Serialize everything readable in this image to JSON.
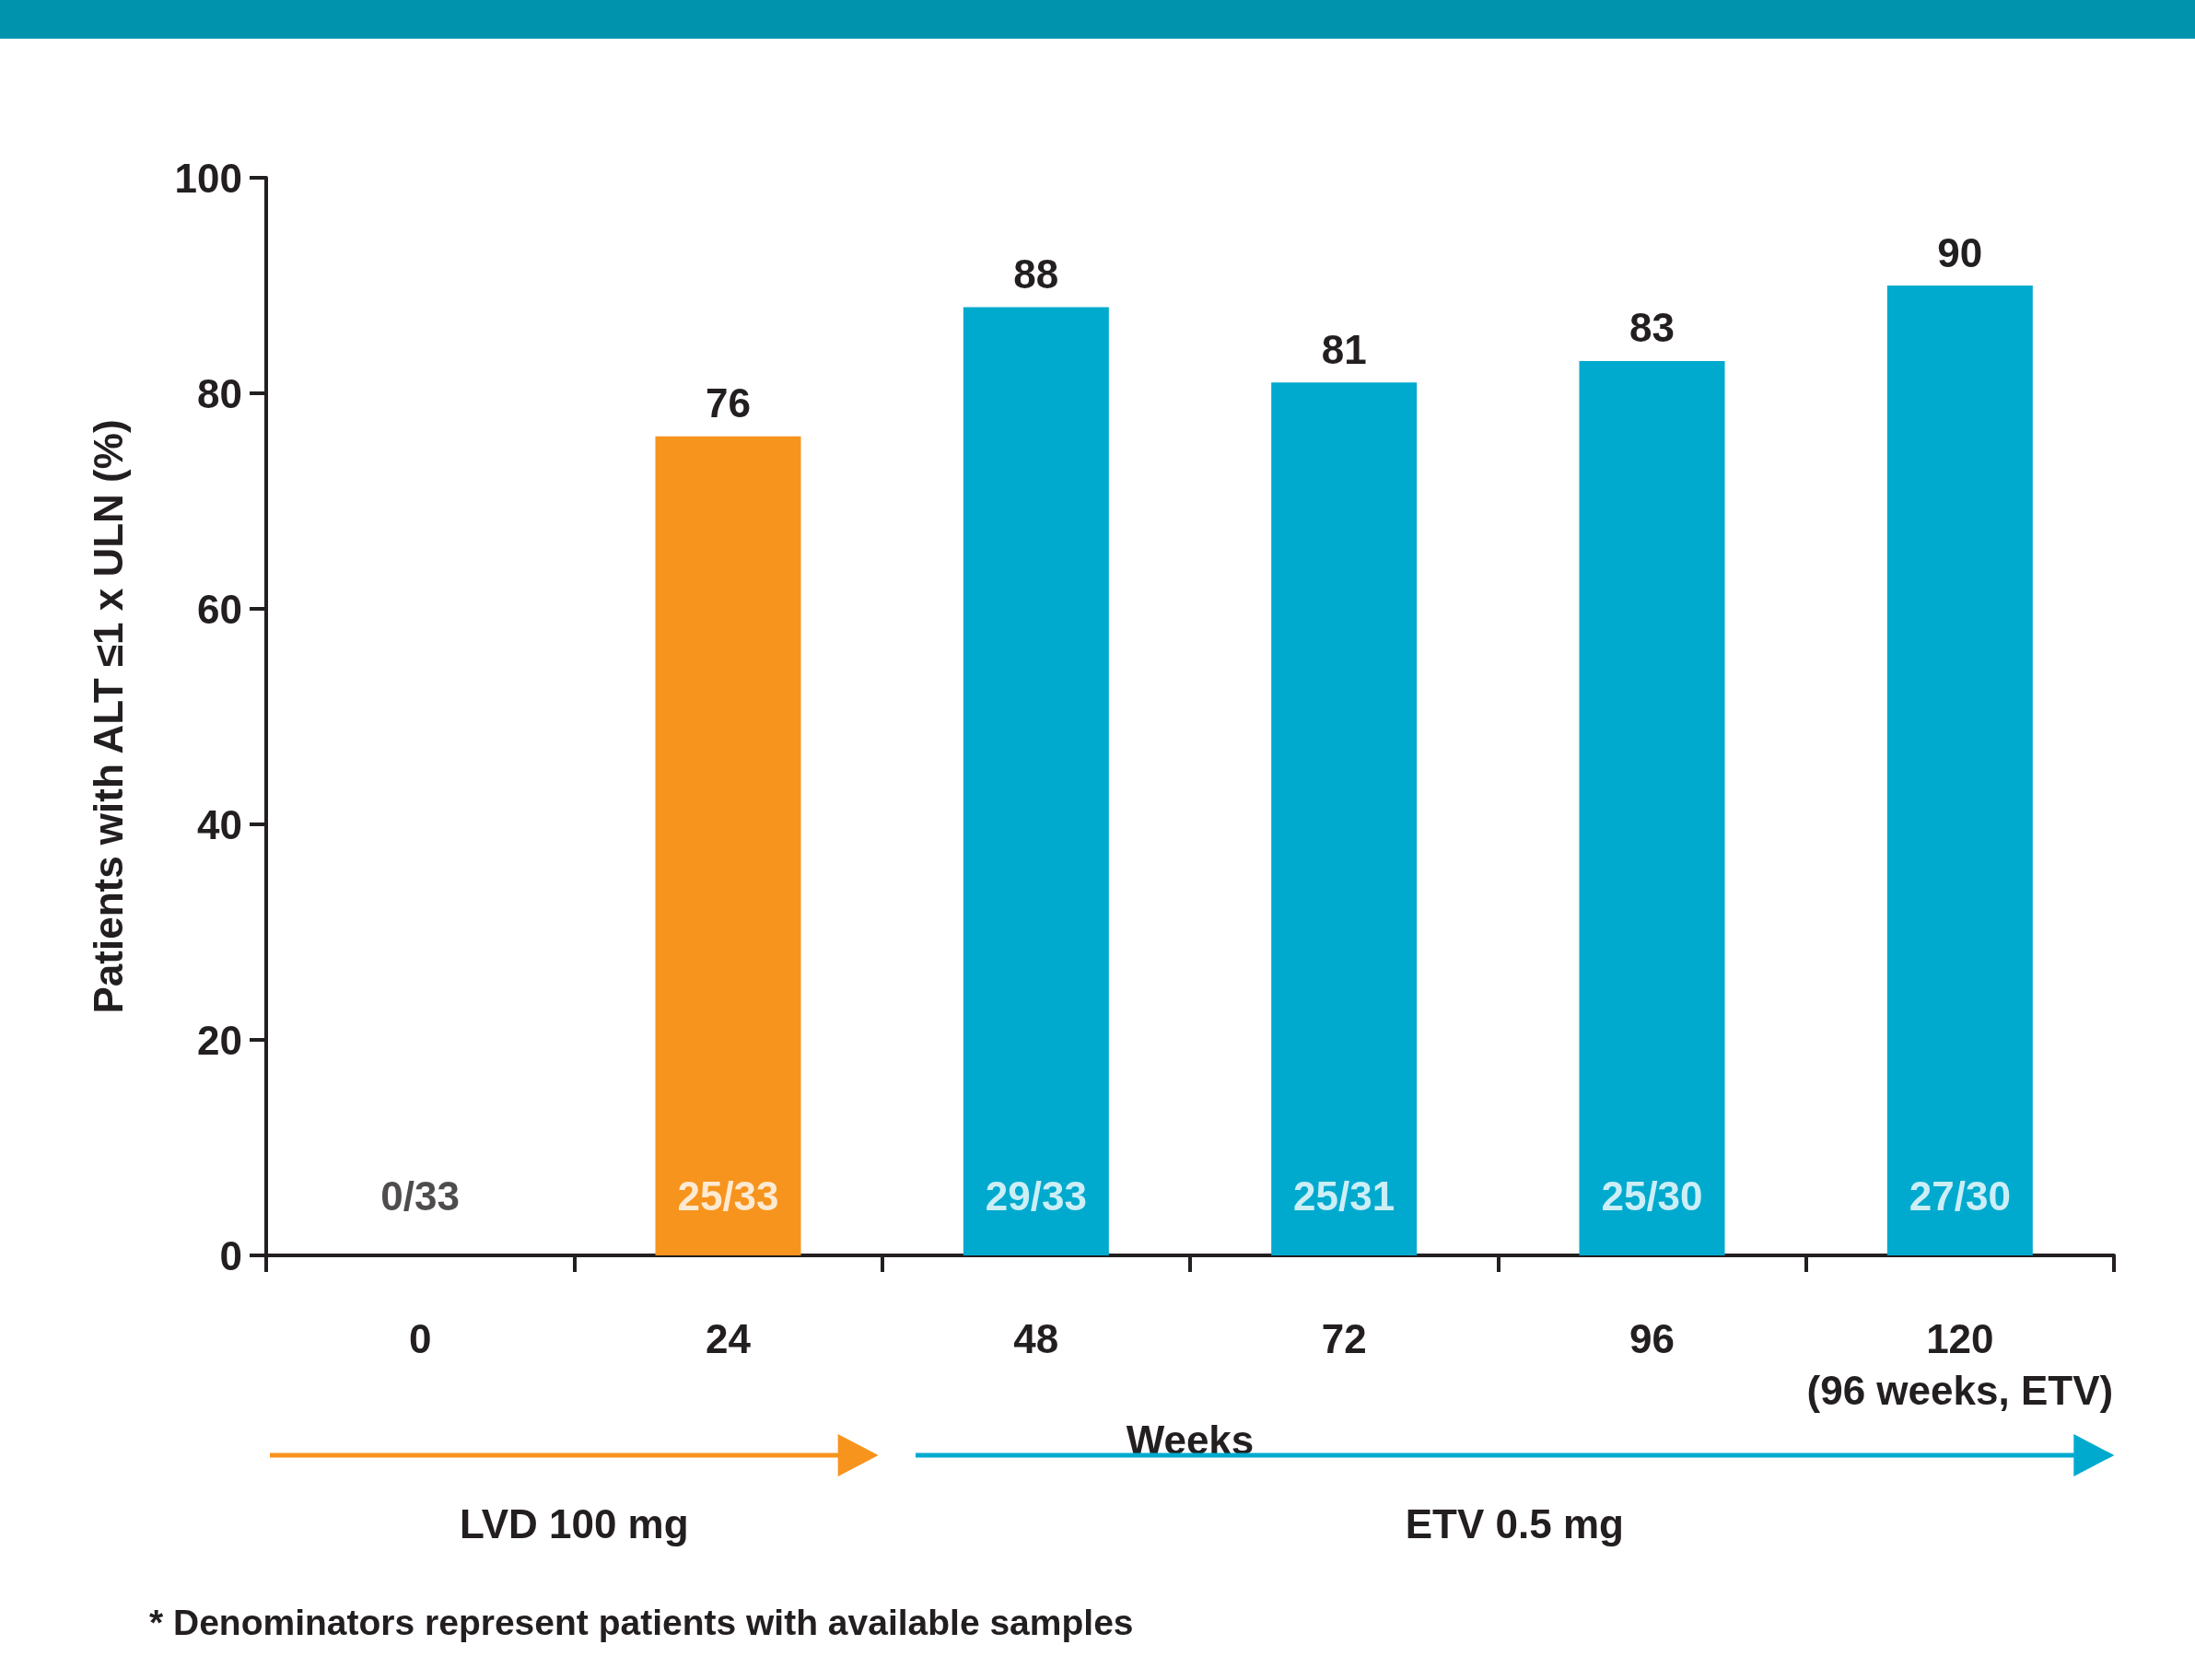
{
  "chart_data": {
    "type": "bar",
    "xlabel": "Weeks",
    "ylabel": "Patients with ALT ≤1 x ULN (%)",
    "categories": [
      "0",
      "24",
      "48",
      "72",
      "96",
      "120\n(96 weeks, ETV)"
    ],
    "values": [
      0,
      76,
      88,
      81,
      83,
      90
    ],
    "colors": [
      null,
      "#f7941d",
      "#00aacf",
      "#00aacf",
      "#00aacf",
      "#00aacf"
    ],
    "value_labels": [
      null,
      "76",
      "88",
      "81",
      "83",
      "90"
    ],
    "ylim": [
      0,
      100
    ],
    "yticks": [
      0,
      20,
      40,
      60,
      80,
      100
    ],
    "annotations": [
      "0/33",
      "25/33",
      "29/33",
      "25/31",
      "25/30",
      "27/30",
      "LVD 100  mg",
      "ETV 0.5 mg",
      "* Denominators represent patients with available samples"
    ]
  }
}
